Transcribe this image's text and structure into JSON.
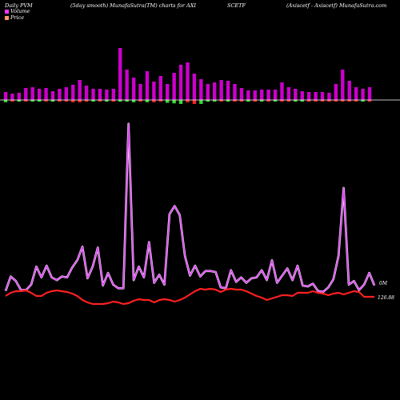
{
  "header": {
    "left": "Daily PVM",
    "title": "(5day smooth) MunafaSutra(TM) charts for AXI",
    "symbol": "SCETF",
    "company": "(Axiscetf - Axiscetf) MunafaSutra.com"
  },
  "legend": [
    {
      "label": "Volume",
      "color": "#ff33ff"
    },
    {
      "label": "Price",
      "color": "#ff9966"
    }
  ],
  "colors": {
    "background": "#000000",
    "volume_line": "#e040fb",
    "price_line": "#ff2020",
    "bar_up": "#cc00cc",
    "bar_down": "#ff2222",
    "bar_neutral": "#33dd33",
    "baseline": "#ffffff"
  },
  "labels": {
    "volume_value": "0M",
    "price_value": "126.88"
  },
  "chart_data": {
    "type": "line",
    "title": "(5day smooth) MunafaSutra(TM) charts for AXI",
    "series": [
      {
        "name": "Volume",
        "values": [
          0.1,
          0.26,
          0.21,
          0.11,
          0.11,
          0.17,
          0.37,
          0.25,
          0.38,
          0.25,
          0.22,
          0.26,
          0.25,
          0.36,
          0.44,
          0.59,
          0.24,
          0.37,
          0.58,
          0.16,
          0.3,
          0.17,
          0.13,
          0.13,
          1.95,
          0.22,
          0.37,
          0.25,
          0.64,
          0.19,
          0.28,
          0.17,
          0.95,
          1.04,
          0.94,
          0.49,
          0.27,
          0.38,
          0.26,
          0.32,
          0.32,
          0.31,
          0.14,
          0.13,
          0.33,
          0.2,
          0.25,
          0.19,
          0.24,
          0.25,
          0.33,
          0.22,
          0.44,
          0.19,
          0.27,
          0.35,
          0.22,
          0.38,
          0.16,
          0.15,
          0.18,
          0.1,
          0.09,
          0.14,
          0.23,
          0.49,
          1.24,
          0.17,
          0.21,
          0.11,
          0.17,
          0.3,
          0.16
        ]
      },
      {
        "name": "Price",
        "values": [
          127.0,
          127.4,
          127.6,
          127.6,
          127.7,
          127.4,
          127.0,
          127.0,
          127.4,
          127.6,
          127.7,
          127.6,
          127.5,
          127.3,
          127.0,
          126.5,
          126.2,
          126.0,
          126.0,
          126.0,
          126.1,
          126.3,
          126.2,
          126.0,
          126.1,
          126.4,
          126.6,
          126.5,
          126.5,
          126.2,
          126.5,
          126.6,
          126.5,
          126.3,
          126.5,
          126.8,
          127.2,
          127.6,
          127.9,
          127.8,
          127.9,
          127.8,
          127.5,
          127.8,
          127.9,
          127.8,
          127.8,
          127.6,
          127.3,
          127.0,
          126.8,
          126.5,
          126.7,
          126.9,
          127.1,
          127.1,
          127.0,
          127.4,
          127.4,
          127.4,
          127.6,
          127.4,
          127.3,
          127.1,
          127.3,
          127.4,
          127.2,
          127.4,
          127.6,
          127.5,
          126.9,
          126.9,
          126.9
        ]
      }
    ],
    "bars": [
      {
        "vol": 0.1,
        "price_change": 0.2
      },
      {
        "vol": 0.08,
        "price_change": -0.15
      },
      {
        "vol": 0.09,
        "price_change": 0.12
      },
      {
        "vol": 0.15,
        "price_change": -0.1
      },
      {
        "vol": 0.16,
        "price_change": 0.0
      },
      {
        "vol": 0.14,
        "price_change": 0.1
      },
      {
        "vol": 0.15,
        "price_change": -0.05
      },
      {
        "vol": 0.11,
        "price_change": 0.15
      },
      {
        "vol": 0.14,
        "price_change": -0.15
      },
      {
        "vol": 0.16,
        "price_change": -0.1
      },
      {
        "vol": 0.19,
        "price_change": -0.2
      },
      {
        "vol": 0.25,
        "price_change": -0.2
      },
      {
        "vol": 0.18,
        "price_change": -0.15
      },
      {
        "vol": 0.14,
        "price_change": 0.05
      },
      {
        "vol": 0.14,
        "price_change": -0.05
      },
      {
        "vol": 0.13,
        "price_change": 0.0
      },
      {
        "vol": 0.14,
        "price_change": -0.05
      },
      {
        "vol": 0.65,
        "price_change": 0.1
      },
      {
        "vol": 0.38,
        "price_change": 0.15
      },
      {
        "vol": 0.28,
        "price_change": 0.2
      },
      {
        "vol": 0.2,
        "price_change": -0.15
      },
      {
        "vol": 0.36,
        "price_change": 0.2
      },
      {
        "vol": 0.23,
        "price_change": -0.2
      },
      {
        "vol": 0.3,
        "price_change": -0.1
      },
      {
        "vol": 0.2,
        "price_change": 0.25
      },
      {
        "vol": 0.34,
        "price_change": 0.3
      },
      {
        "vol": 0.44,
        "price_change": 0.35
      },
      {
        "vol": 0.47,
        "price_change": -0.2
      },
      {
        "vol": 0.33,
        "price_change": -0.35
      },
      {
        "vol": 0.26,
        "price_change": 0.35
      },
      {
        "vol": 0.2,
        "price_change": 0.15
      },
      {
        "vol": 0.22,
        "price_change": 0.1
      },
      {
        "vol": 0.25,
        "price_change": -0.1
      },
      {
        "vol": 0.24,
        "price_change": 0.1
      },
      {
        "vol": 0.2,
        "price_change": -0.15
      },
      {
        "vol": 0.15,
        "price_change": -0.1
      },
      {
        "vol": 0.12,
        "price_change": 0.1
      },
      {
        "vol": 0.12,
        "price_change": -0.15
      },
      {
        "vol": 0.13,
        "price_change": 0.1
      },
      {
        "vol": 0.13,
        "price_change": -0.1
      },
      {
        "vol": 0.13,
        "price_change": 0.1
      },
      {
        "vol": 0.22,
        "price_change": -0.1
      },
      {
        "vol": 0.16,
        "price_change": -0.05
      },
      {
        "vol": 0.14,
        "price_change": 0.1
      },
      {
        "vol": 0.11,
        "price_change": 0.1
      },
      {
        "vol": 0.1,
        "price_change": -0.05
      },
      {
        "vol": 0.1,
        "price_change": -0.05
      },
      {
        "vol": 0.1,
        "price_change": -0.05
      },
      {
        "vol": 0.09,
        "price_change": -0.05
      },
      {
        "vol": 0.2,
        "price_change": -0.05
      },
      {
        "vol": 0.38,
        "price_change": -0.05
      },
      {
        "vol": 0.24,
        "price_change": -0.1
      },
      {
        "vol": 0.16,
        "price_change": -0.05
      },
      {
        "vol": 0.14,
        "price_change": 0.0
      },
      {
        "vol": 0.16,
        "price_change": -0.05
      }
    ],
    "ylabel": "",
    "xlabel": ""
  }
}
